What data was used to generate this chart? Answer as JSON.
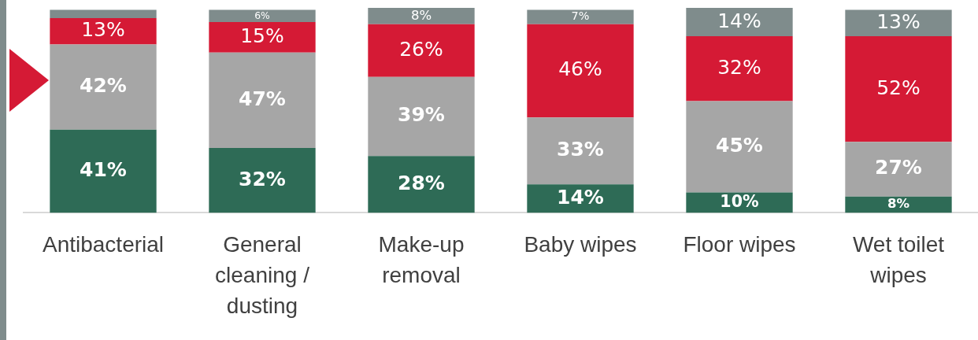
{
  "chart_data": {
    "type": "bar",
    "stacked": true,
    "categories": [
      "Antibacterial",
      "General cleaning / dusting",
      "Make-up removal",
      "Baby wipes",
      "Floor wipes",
      "Wet toilet wipes"
    ],
    "series": [
      {
        "color": "#2e6b56",
        "values": [
          41,
          32,
          28,
          14,
          10,
          8
        ],
        "value_labels": [
          "41%",
          "32%",
          "28%",
          "14%",
          "10%",
          "8%"
        ]
      },
      {
        "color": "#a6a6a6",
        "values": [
          42,
          47,
          39,
          33,
          45,
          27
        ],
        "value_labels": [
          "42%",
          "47%",
          "39%",
          "33%",
          "45%",
          "27%"
        ]
      },
      {
        "color": "#d51a35",
        "values": [
          13,
          15,
          26,
          46,
          32,
          52
        ],
        "value_labels": [
          "13%",
          "15%",
          "26%",
          "46%",
          "32%",
          "52%"
        ]
      },
      {
        "color": "#7f8c8c",
        "values": [
          4,
          6,
          8,
          7,
          14,
          13
        ],
        "value_labels": [
          null,
          "6%",
          "8%",
          "7%",
          "14%",
          "13%"
        ]
      }
    ],
    "ylim": [
      0,
      101
    ],
    "grid": false,
    "legend": false,
    "tick_labels": "x"
  }
}
